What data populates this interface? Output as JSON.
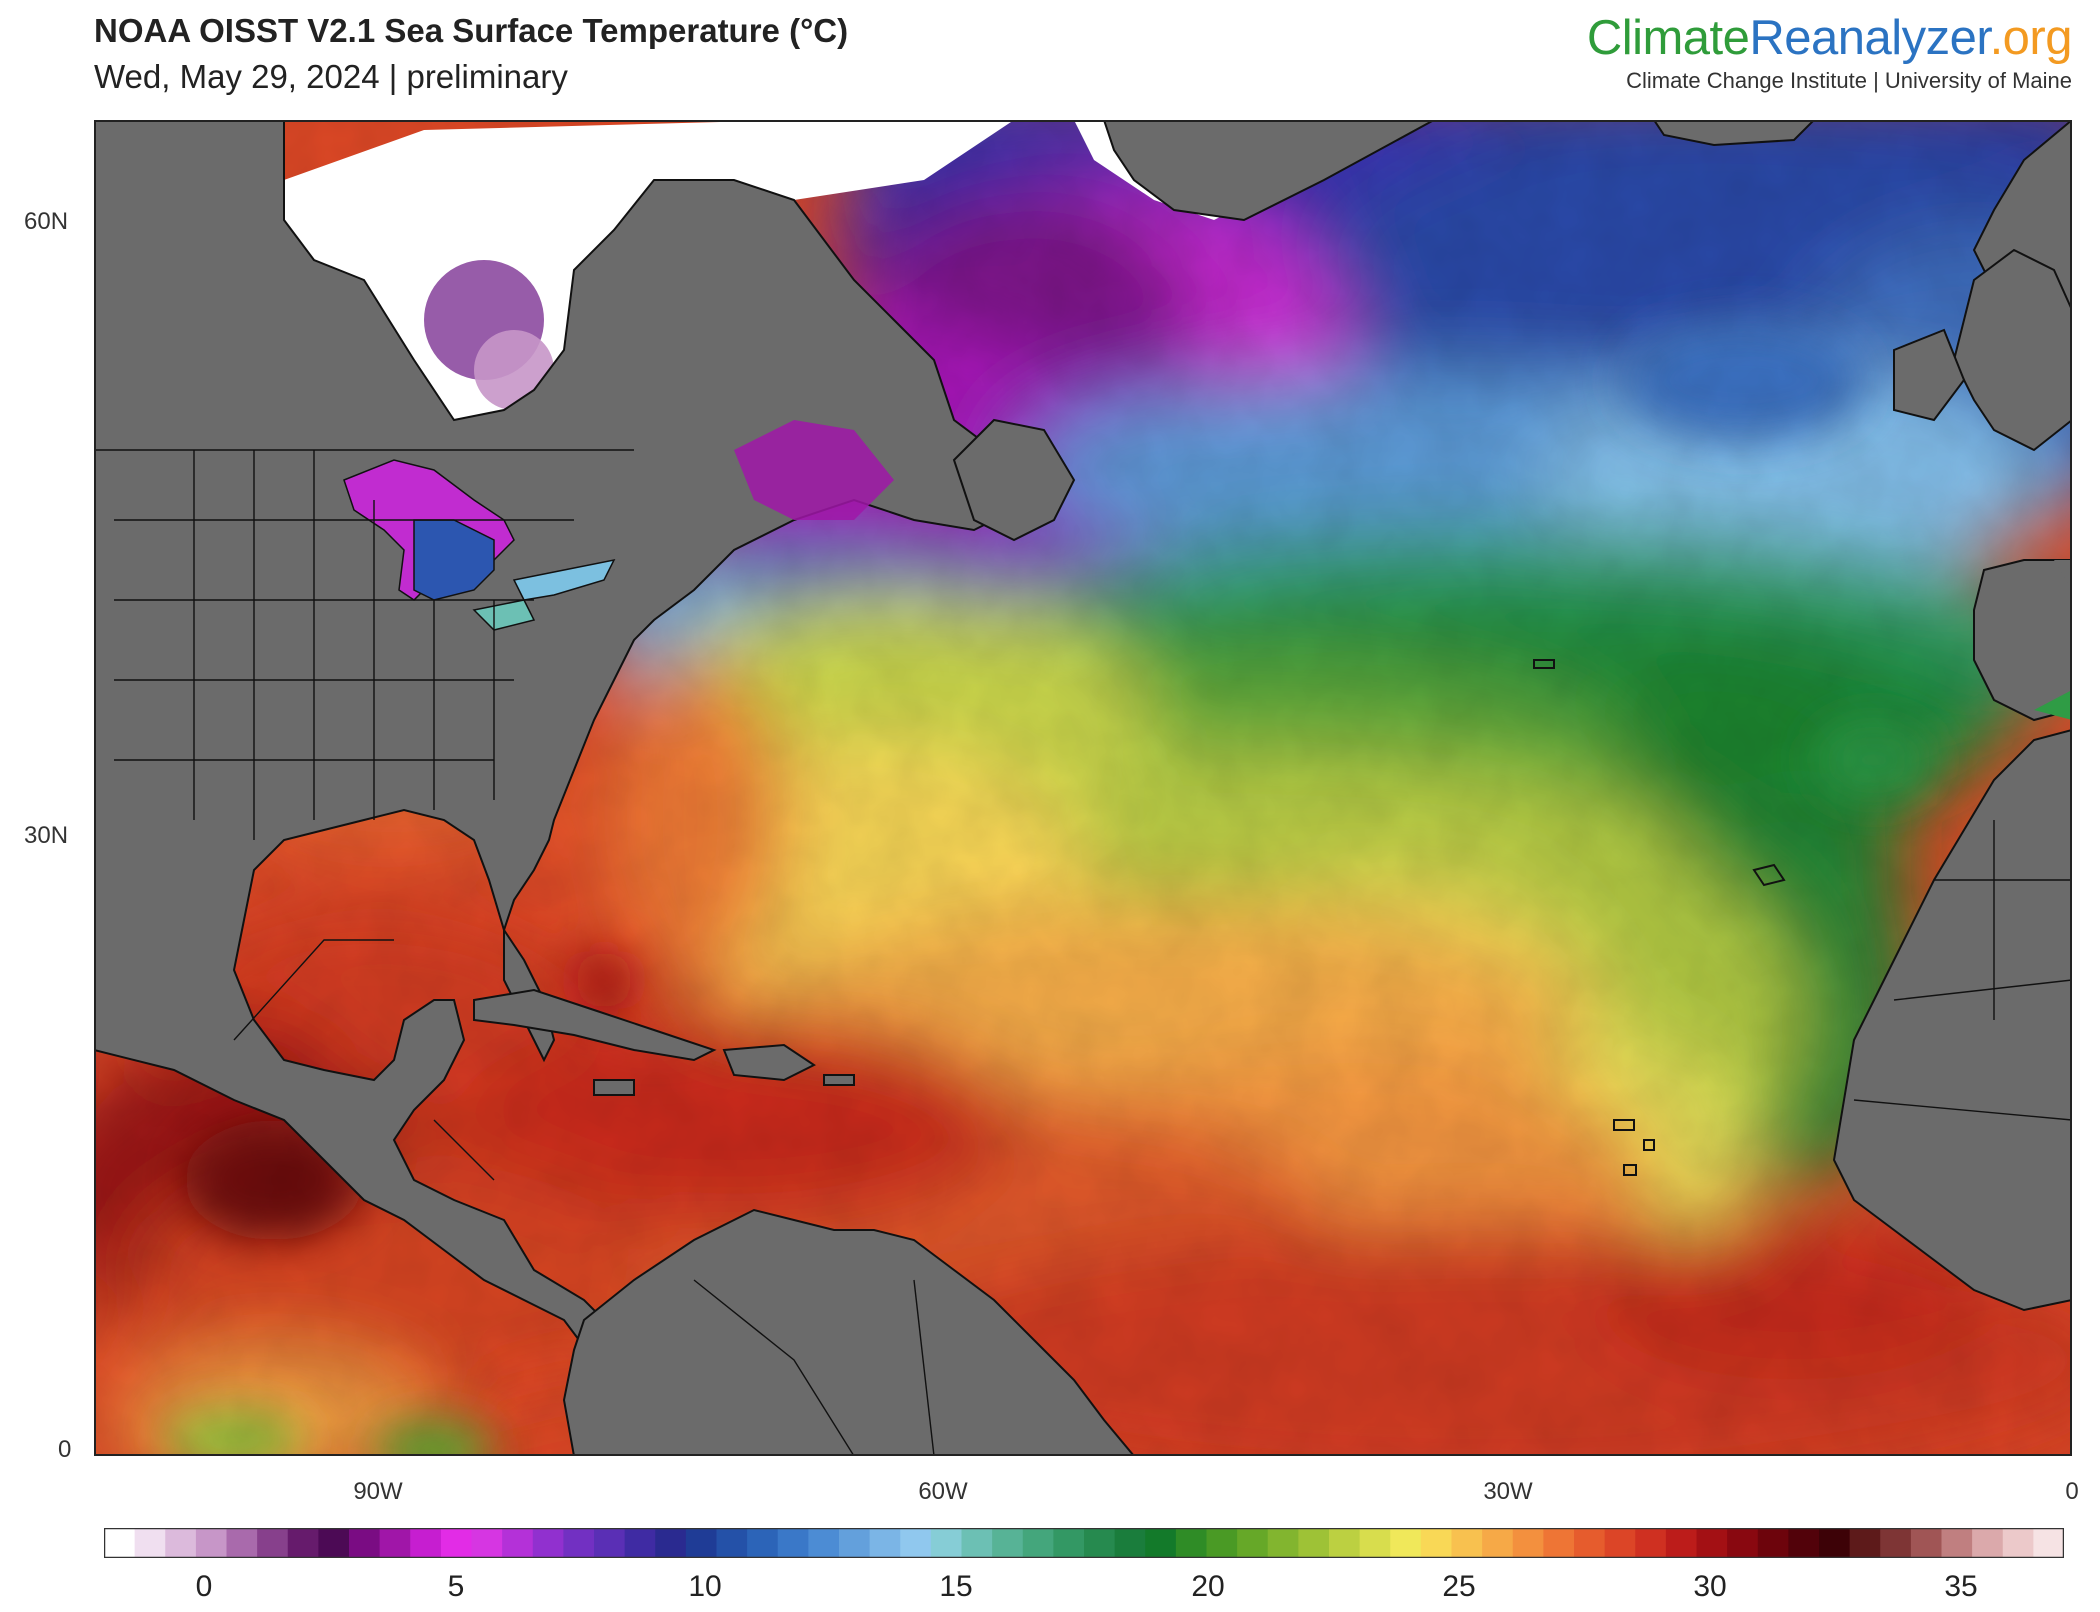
{
  "header": {
    "title": "NOAA OISST V2.1 Sea Surface Temperature (°C)",
    "subtitle": "Wed, May 29, 2024 | preliminary"
  },
  "brand": {
    "part1": "Climate",
    "part2": "Reanalyzer",
    "part3": ".org",
    "tagline": "Climate Change Institute | University of Maine",
    "colors": {
      "climate": "#2f9c3a",
      "reanalyzer": "#2b73c2",
      "org": "#f39a21"
    }
  },
  "map": {
    "region": "North Atlantic Ocean",
    "land_color": "#6b6b6b",
    "ice_color": "#ffffff",
    "lat_ticks": [
      "60N",
      "30N",
      "0"
    ],
    "lon_ticks": [
      "90W",
      "60W",
      "30W",
      "0"
    ]
  },
  "colorbar": {
    "unit": "°C",
    "labels": [
      "0",
      "5",
      "10",
      "15",
      "20",
      "25",
      "30",
      "35"
    ],
    "stops": [
      "#ffffff",
      "#f0dff0",
      "#dcbadc",
      "#c796c8",
      "#a96aac",
      "#87408c",
      "#661b6c",
      "#4c0a55",
      "#7a0c83",
      "#a016a8",
      "#c61ed0",
      "#e22ce6",
      "#d636e2",
      "#b431d8",
      "#9130cf",
      "#7230c2",
      "#5a2fb5",
      "#3f2ba3",
      "#2a2a90",
      "#1f3c96",
      "#2451a8",
      "#2c64b8",
      "#3a78c8",
      "#4c8cd4",
      "#63a0dc",
      "#7bb5e6",
      "#90c8ee",
      "#86cdd6",
      "#6cc0b4",
      "#57b396",
      "#44a67c",
      "#339864",
      "#268a4f",
      "#1a7d3c",
      "#137a2a",
      "#2f8c26",
      "#4a9a25",
      "#66a828",
      "#82b52f",
      "#9ec236",
      "#bcd041",
      "#d8dd4d",
      "#f0e85a",
      "#f9d856",
      "#f8c14f",
      "#f6a947",
      "#f3903e",
      "#ee7535",
      "#e65c2d",
      "#dc4527",
      "#cf3021",
      "#bc1c1a",
      "#a31014",
      "#890810",
      "#6d040c",
      "#52020a",
      "#3d0207",
      "#5d1a1a",
      "#7e3535",
      "#a05555",
      "#c07f80",
      "#dba9ab",
      "#ecc9ca",
      "#f6e3e4"
    ]
  }
}
